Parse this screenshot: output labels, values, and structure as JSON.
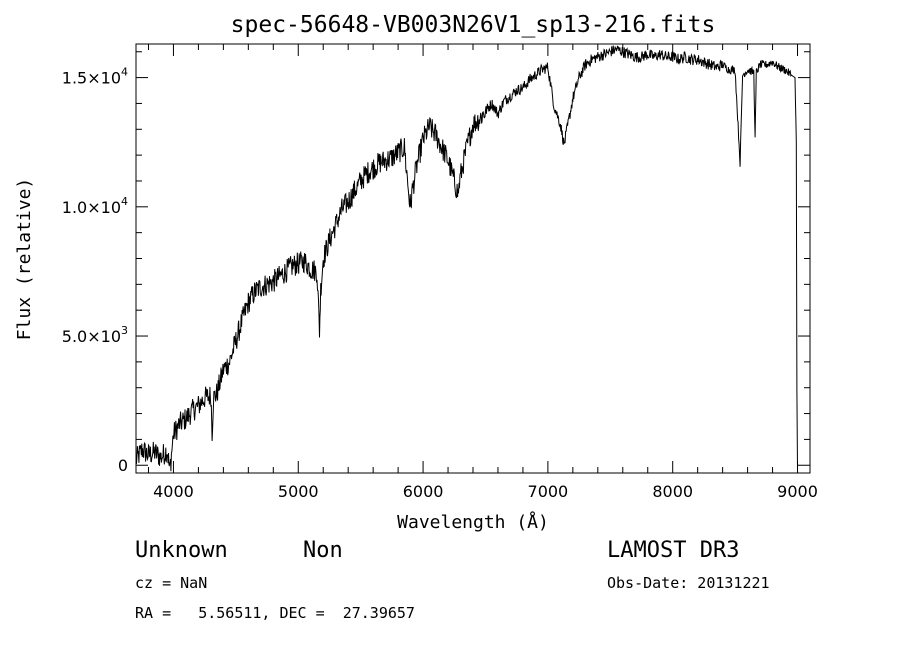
{
  "chart_data": {
    "type": "line",
    "title": "spec-56648-VB003N26V1_sp13-216.fits",
    "xlabel": "Wavelength (Å)",
    "ylabel": "Flux (relative)",
    "xlim": [
      3700,
      9100
    ],
    "ylim": [
      -300,
      16300
    ],
    "xticks": [
      4000,
      5000,
      6000,
      7000,
      8000,
      9000
    ],
    "xtick_labels": [
      "4000",
      "5000",
      "6000",
      "7000",
      "8000",
      "9000"
    ],
    "yticks": [
      0,
      5000,
      10000,
      15000
    ],
    "ytick_labels": [
      {
        "mantissa": "0",
        "exp": ""
      },
      {
        "mantissa": "5.0×10",
        "exp": "3"
      },
      {
        "mantissa": "1.0×10",
        "exp": "4"
      },
      {
        "mantissa": "1.5×10",
        "exp": "4"
      }
    ],
    "series": [
      {
        "name": "flux",
        "x": [
          3700,
          3750,
          3800,
          3850,
          3900,
          3950,
          3960,
          3970,
          3980,
          4000,
          4050,
          4100,
          4150,
          4200,
          4250,
          4300,
          4310,
          4320,
          4350,
          4400,
          4450,
          4500,
          4550,
          4600,
          4650,
          4700,
          4750,
          4800,
          4850,
          4900,
          4950,
          5000,
          5050,
          5100,
          5150,
          5170,
          5180,
          5190,
          5200,
          5250,
          5300,
          5350,
          5400,
          5450,
          5500,
          5550,
          5600,
          5650,
          5700,
          5750,
          5800,
          5850,
          5890,
          5900,
          5910,
          5950,
          6000,
          6050,
          6100,
          6150,
          6200,
          6250,
          6280,
          6300,
          6350,
          6400,
          6450,
          6500,
          6550,
          6600,
          6650,
          6700,
          6750,
          6800,
          6850,
          6900,
          6950,
          7000,
          7050,
          7100,
          7130,
          7150,
          7200,
          7250,
          7300,
          7350,
          7400,
          7450,
          7500,
          7550,
          7600,
          7650,
          7700,
          7750,
          7800,
          7850,
          7900,
          7950,
          8000,
          8050,
          8100,
          8150,
          8200,
          8250,
          8300,
          8350,
          8400,
          8450,
          8500,
          8540,
          8560,
          8600,
          8650,
          8660,
          8670,
          8700,
          8750,
          8800,
          8850,
          8900,
          8950,
          8980,
          8990,
          8995,
          9000
        ],
        "y": [
          200,
          600,
          400,
          500,
          300,
          600,
          200,
          -200,
          200,
          1200,
          1600,
          1800,
          2100,
          2300,
          2600,
          2700,
          1300,
          2600,
          2800,
          3700,
          4000,
          4800,
          5600,
          6300,
          6700,
          6900,
          7000,
          7100,
          7300,
          7500,
          7700,
          7800,
          7900,
          7600,
          7500,
          5200,
          6800,
          7400,
          8000,
          8700,
          9300,
          9900,
          10200,
          10600,
          11000,
          11300,
          11500,
          11700,
          11800,
          11900,
          12100,
          12300,
          10300,
          10000,
          10500,
          11600,
          12600,
          13100,
          12800,
          12300,
          11800,
          11000,
          10500,
          11200,
          12300,
          13200,
          13400,
          13700,
          14000,
          13600,
          14100,
          14300,
          14500,
          14600,
          14900,
          15100,
          15300,
          15400,
          13900,
          13200,
          12400,
          12900,
          14200,
          15000,
          15500,
          15700,
          15800,
          15900,
          16000,
          16100,
          16000,
          15900,
          15800,
          15800,
          15900,
          15800,
          15900,
          15800,
          15800,
          15700,
          15800,
          15700,
          15700,
          15600,
          15500,
          15400,
          15500,
          15300,
          15300,
          11700,
          15100,
          15300,
          15200,
          12600,
          15200,
          15500,
          15500,
          15600,
          15400,
          15300,
          15100,
          15000,
          12500,
          2900,
          -200
        ]
      }
    ]
  },
  "info": {
    "object_class": "Unknown",
    "subclass": "Non",
    "survey": "LAMOST DR3",
    "redshift_line": "cz = NaN",
    "obs_date_line": "Obs-Date: 20131221",
    "coords_line": "RA =   5.56511, DEC =  27.39657"
  },
  "colors": {
    "line": "#000000",
    "background": "#ffffff"
  }
}
